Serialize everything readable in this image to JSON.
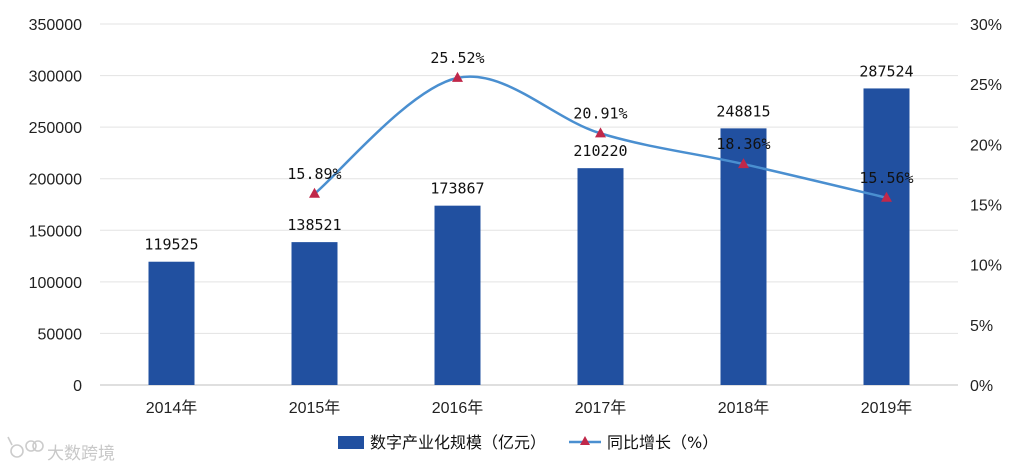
{
  "chart_data": {
    "type": "bar",
    "categories": [
      "2014年",
      "2015年",
      "2016年",
      "2017年",
      "2018年",
      "2019年"
    ],
    "series": [
      {
        "name": "数字产业化规模（亿元）",
        "type": "bar",
        "axis": "left",
        "values": [
          119525,
          138521,
          173867,
          210220,
          248815,
          287524
        ],
        "labels": [
          "119525",
          "138521",
          "173867",
          "210220",
          "248815",
          "287524"
        ],
        "color": "#2150a0"
      },
      {
        "name": "同比增长（%）",
        "type": "line",
        "axis": "right",
        "values": [
          null,
          15.89,
          25.52,
          20.91,
          18.36,
          15.56
        ],
        "labels": [
          "",
          "15.89%",
          "25.52%",
          "20.91%",
          "18.36%",
          "15.56%"
        ],
        "color": "#4a8fd0",
        "marker_color": "#c0284a",
        "marker": "triangle"
      }
    ],
    "y_left": {
      "ylim": [
        0,
        350000
      ],
      "ticks": [
        "0",
        "50000",
        "100000",
        "150000",
        "200000",
        "250000",
        "300000",
        "350000"
      ]
    },
    "y_right": {
      "ylim": [
        0,
        30
      ],
      "ticks": [
        "0%",
        "5%",
        "10%",
        "15%",
        "20%",
        "25%",
        "30%"
      ]
    },
    "grid": true,
    "legend": "bottom"
  },
  "watermark": "大数跨境"
}
